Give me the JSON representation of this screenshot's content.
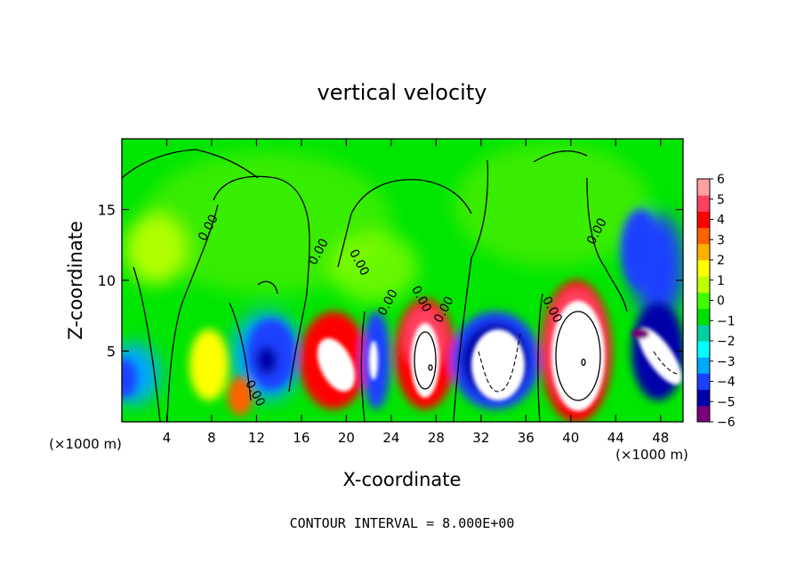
{
  "chart_data": {
    "type": "heatmap",
    "title": "vertical velocity",
    "xlabel": "X-coordinate",
    "ylabel": "Z-coordinate",
    "x_unit": "(×1000 m)",
    "x_unit_right": "(×1000 m)",
    "footer": "CONTOUR INTERVAL = 8.000E+00",
    "xlim": [
      0,
      50
    ],
    "ylim": [
      0,
      20
    ],
    "x_ticks": [
      4,
      8,
      12,
      16,
      20,
      24,
      28,
      32,
      36,
      40,
      44,
      48
    ],
    "y_ticks": [
      5,
      10,
      15
    ],
    "colorbar": {
      "ticks": [
        6,
        5,
        4,
        3,
        2,
        1,
        0,
        -1,
        -2,
        -3,
        -4,
        -5,
        -6
      ],
      "range": [
        -6,
        6
      ],
      "colors": [
        "#7a007a",
        "#0000a8",
        "#1a40ff",
        "#00a8ff",
        "#00ffff",
        "#00d0a0",
        "#00e000",
        "#40ff00",
        "#c0ff00",
        "#ffff00",
        "#ffb000",
        "#ff6000",
        "#ff0000",
        "#ff4060",
        "#ffa0a0"
      ]
    },
    "contour_labels": [
      "0.00",
      "0.00",
      "0.00",
      "0.00",
      "0.00",
      "0.00",
      "0.00",
      "0.00",
      "0.00"
    ],
    "features": [
      {
        "kind": "updraft",
        "x": 18.5,
        "z": 4.5,
        "w": 9
      },
      {
        "kind": "updraft",
        "x": 26.8,
        "z": 4.5,
        "w": 9
      },
      {
        "kind": "updraft",
        "x": 41,
        "z": 5,
        "w": 14
      },
      {
        "kind": "updraft",
        "x": 6.5,
        "z": 4,
        "w": 2.5
      },
      {
        "kind": "updraft",
        "x": 11,
        "z": 1.5,
        "w": 4
      },
      {
        "kind": "updraft",
        "x": 3,
        "z": 12.5,
        "w": 1.8
      },
      {
        "kind": "downdraft",
        "x": 13.5,
        "z": 4.5,
        "w": -5
      },
      {
        "kind": "downdraft",
        "x": 22.5,
        "z": 4.5,
        "w": -6
      },
      {
        "kind": "downdraft",
        "x": 33.5,
        "z": 4.5,
        "w": -9
      },
      {
        "kind": "downdraft",
        "x": 47,
        "z": 5.5,
        "w": -8
      },
      {
        "kind": "downdraft",
        "x": 46.5,
        "z": 12,
        "w": -4
      },
      {
        "kind": "downdraft",
        "x": 1,
        "z": 3,
        "w": -3.5
      }
    ]
  }
}
